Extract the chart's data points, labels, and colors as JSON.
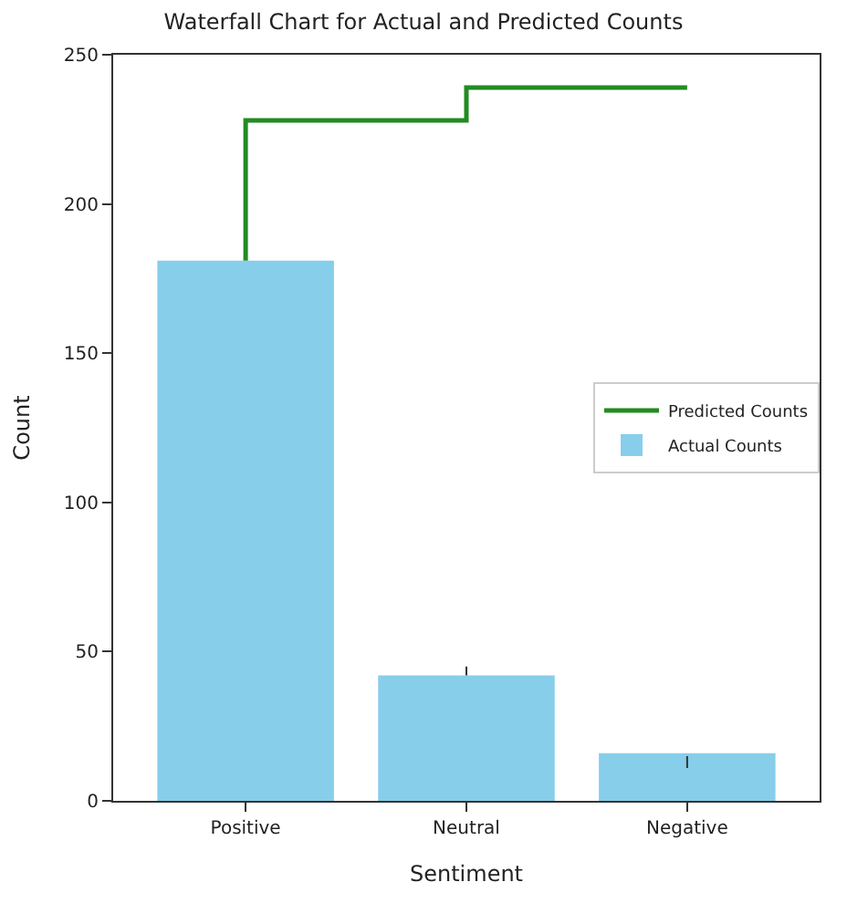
{
  "chart_data": {
    "type": "bar",
    "title": "Waterfall Chart for Actual and Predicted Counts",
    "xlabel": "Sentiment",
    "ylabel": "Count",
    "categories": [
      "Positive",
      "Neutral",
      "Negative"
    ],
    "ylim": [
      0,
      250
    ],
    "yticks": [
      0,
      50,
      100,
      150,
      200,
      250
    ],
    "grid": false,
    "legend": "right",
    "series": [
      {
        "type": "step",
        "name": "Predicted Counts",
        "color": "#228b22",
        "values": [
          181,
          228,
          239
        ]
      },
      {
        "name": "Actual Counts",
        "color": "#87ceeb",
        "values": [
          181,
          42,
          16
        ],
        "errors": [
          null,
          [
            42,
            45
          ],
          [
            11,
            15
          ]
        ]
      }
    ]
  }
}
